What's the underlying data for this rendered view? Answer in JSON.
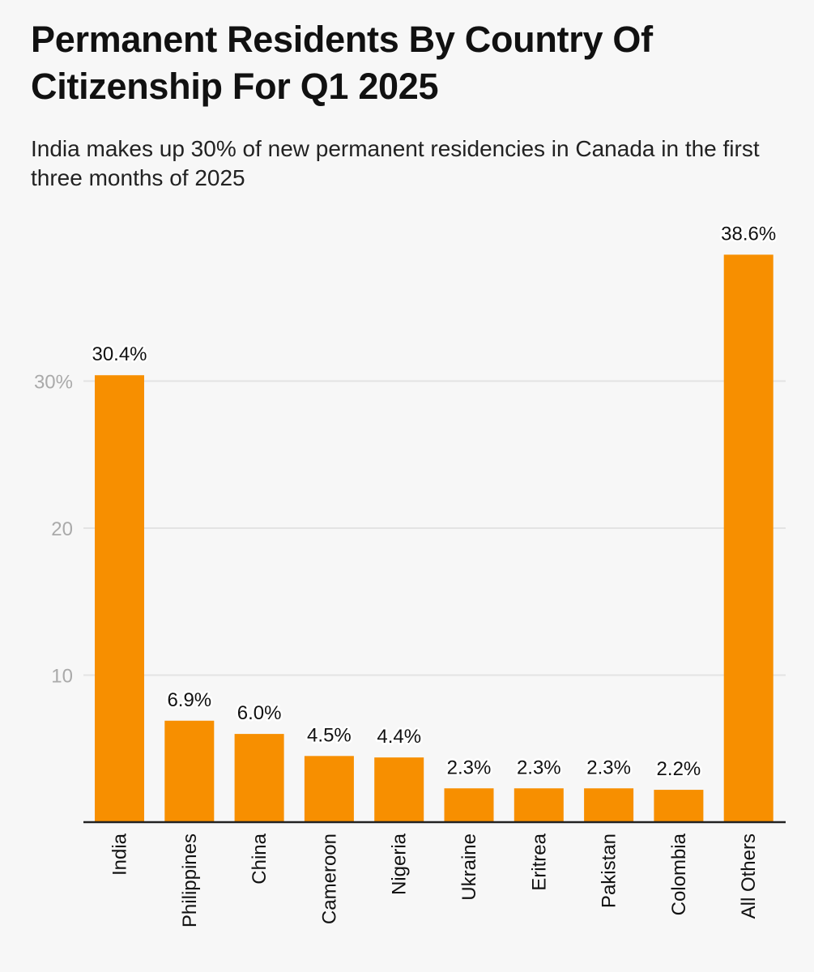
{
  "chart_data": {
    "type": "bar",
    "title": "Permanent Residents By Country Of Citizenship For Q1 2025",
    "subtitle": "India makes up 30% of new permanent residencies in Canada in the first three months of 2025",
    "categories": [
      "India",
      "Philippines",
      "China",
      "Cameroon",
      "Nigeria",
      "Ukraine",
      "Eritrea",
      "Pakistan",
      "Colombia",
      "All Others"
    ],
    "values": [
      30.4,
      6.9,
      6.0,
      4.5,
      4.4,
      2.3,
      2.3,
      2.3,
      2.2,
      38.6
    ],
    "data_labels": [
      "30.4%",
      "6.9%",
      "6.0%",
      "4.5%",
      "4.4%",
      "2.3%",
      "2.3%",
      "2.3%",
      "2.2%",
      "38.6%"
    ],
    "y_ticks": [
      10,
      20,
      30
    ],
    "y_tick_labels": [
      "10",
      "20",
      "30%"
    ],
    "ylim": [
      0,
      40
    ],
    "xlabel": "",
    "ylabel": "",
    "grid": true,
    "bar_color": "#f78f00"
  }
}
